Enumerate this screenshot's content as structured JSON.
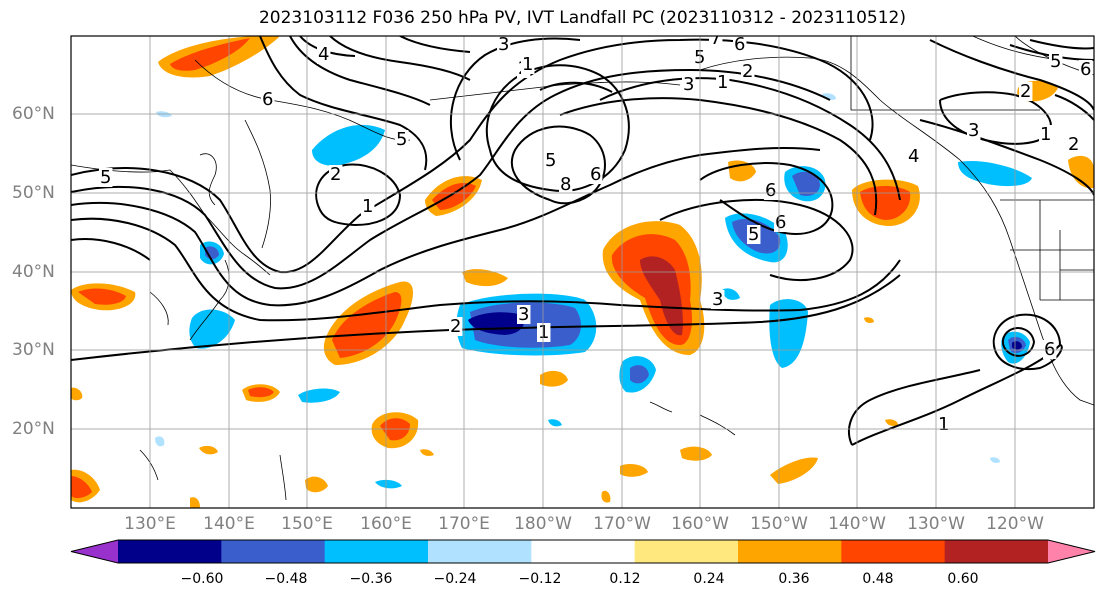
{
  "title": "2023103112 F036 250 hPa PV, IVT Landfall PC (2023110312 - 2023110512)",
  "lat_labels": [
    "60°N",
    "50°N",
    "40°N",
    "30°N",
    "20°N"
  ],
  "lon_labels": [
    "130°E",
    "140°E",
    "150°E",
    "160°E",
    "170°E",
    "180°W",
    "170°W",
    "160°W",
    "150°W",
    "140°W",
    "130°W",
    "120°W"
  ],
  "colorbar": {
    "ticks": [
      "−0.60",
      "−0.48",
      "−0.36",
      "−0.24",
      "−0.12",
      "0.12",
      "0.24",
      "0.36",
      "0.48",
      "0.60"
    ],
    "colors": [
      "#9932cc",
      "#00008b",
      "#3a5fcd",
      "#00bfff",
      "#b0e2ff",
      "#ffffff",
      "#ffe97f",
      "#ffa500",
      "#ff4500",
      "#b22222",
      "#ff82ab"
    ]
  },
  "contour_labels": [
    "4",
    "3",
    "5",
    "6",
    "2",
    "1",
    "7",
    "5",
    "6",
    "2",
    "1",
    "3",
    "2",
    "3",
    "2",
    "1",
    "8",
    "5",
    "6",
    "5",
    "5",
    "6",
    "4",
    "6",
    "2",
    "1",
    "6",
    "5",
    "3",
    "6",
    "2",
    "3",
    "1",
    "1"
  ]
}
